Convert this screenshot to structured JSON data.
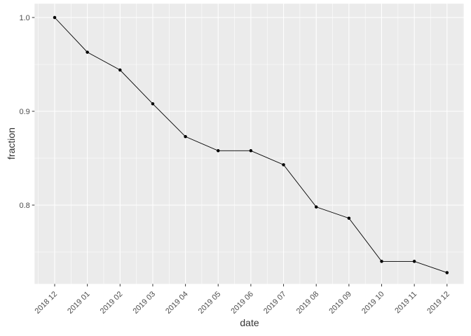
{
  "chart_data": {
    "type": "line",
    "xlabel": "date",
    "ylabel": "fraction",
    "categories": [
      "2018 12",
      "2019 01",
      "2019 02",
      "2019 03",
      "2019 04",
      "2019 05",
      "2019 06",
      "2019 07",
      "2019 08",
      "2019 09",
      "2019 10",
      "2019 11",
      "2019 12"
    ],
    "values": [
      1.0,
      0.963,
      0.944,
      0.908,
      0.873,
      0.858,
      0.858,
      0.843,
      0.798,
      0.786,
      0.74,
      0.74,
      0.728
    ],
    "y_ticks": [
      1.0,
      0.9,
      0.8
    ],
    "y_tick_labels": [
      "1.0",
      "0.9",
      "0.8"
    ],
    "y_minor_ticks": [
      0.95,
      0.85,
      0.75
    ],
    "ylim": [
      0.716,
      1.015
    ],
    "grid": "major-and-minor",
    "legend": "none",
    "marker": "point",
    "panel_bg": "#EBEBEB",
    "grid_color": "#FFFFFF",
    "line_color": "#000000",
    "point_color": "#000000",
    "tick_mark_color": "#333333",
    "tick_label_color": "#4D4D4D",
    "axis_title_color": "#333333",
    "x_label_rotation_deg": 45
  }
}
